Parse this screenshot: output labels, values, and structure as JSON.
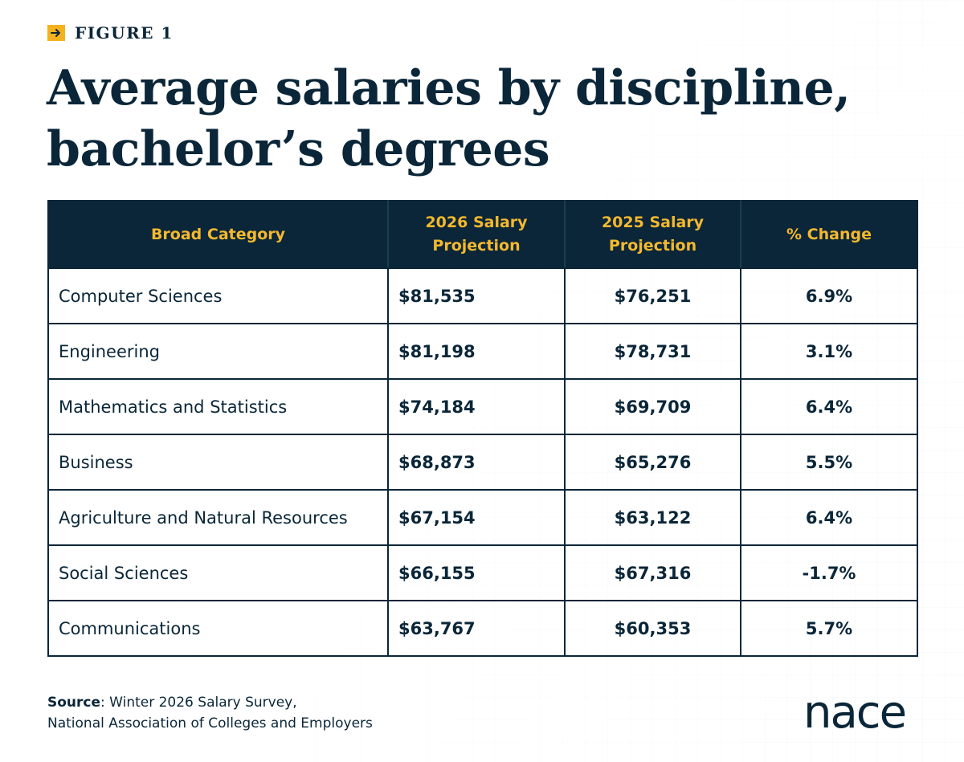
{
  "figure_label": "FIGURE 1",
  "title_line1": "Average salaries by discipline,",
  "title_line2": "bachelor’s degrees",
  "colors": {
    "navy": "#0a2638",
    "gold": "#f5b82e",
    "background": "#ffffff"
  },
  "chart_data": {
    "type": "table",
    "columns": [
      "Broad Category",
      "2026 Salary Projection",
      "2025 Salary Projection",
      "% Change"
    ],
    "rows": [
      {
        "category": "Computer Sciences",
        "salary_2026": "$81,535",
        "salary_2025": "$76,251",
        "change": "6.9%"
      },
      {
        "category": "Engineering",
        "salary_2026": "$81,198",
        "salary_2025": "$78,731",
        "change": "3.1%"
      },
      {
        "category": "Mathematics and Statistics",
        "salary_2026": "$74,184",
        "salary_2025": "$69,709",
        "change": "6.4%"
      },
      {
        "category": "Business",
        "salary_2026": "$68,873",
        "salary_2025": "$65,276",
        "change": "5.5%"
      },
      {
        "category": "Agriculture and Natural Resources",
        "salary_2026": "$67,154",
        "salary_2025": "$63,122",
        "change": "6.4%"
      },
      {
        "category": "Social Sciences",
        "salary_2026": "$66,155",
        "salary_2025": "$67,316",
        "change": "-1.7%"
      },
      {
        "category": "Communications",
        "salary_2026": "$63,767",
        "salary_2025": "$60,353",
        "change": "5.7%"
      }
    ]
  },
  "source": {
    "label": "Source",
    "line1": ": Winter 2026 Salary Survey,",
    "line2": "National Association of Colleges and Employers"
  },
  "logo": {
    "text": "nace"
  }
}
